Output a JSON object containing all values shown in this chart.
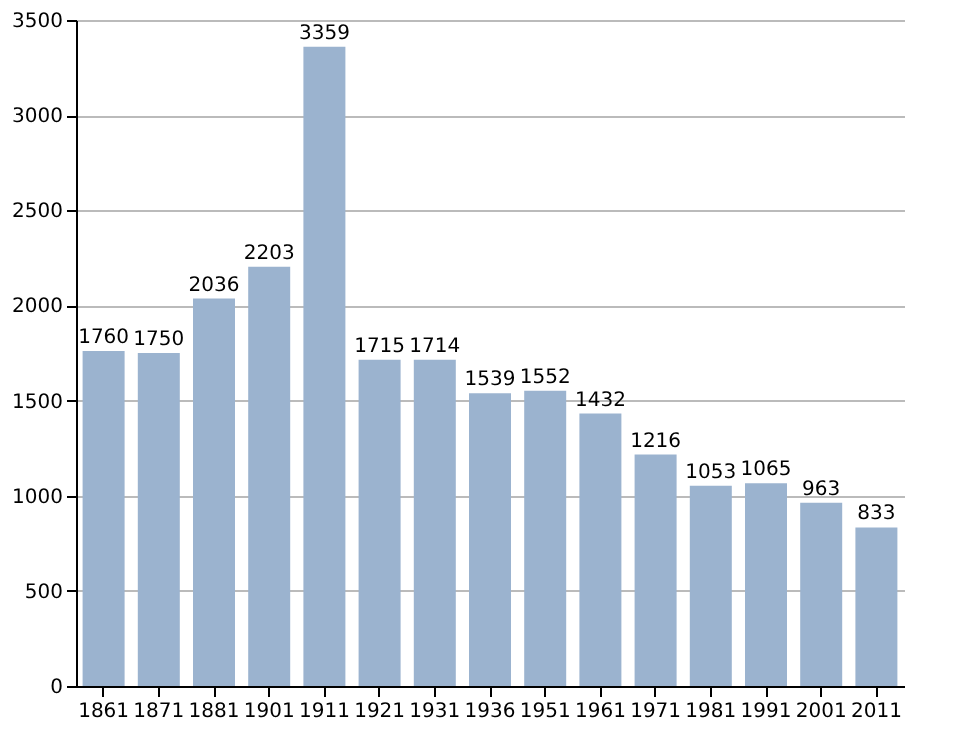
{
  "chart_data": {
    "type": "bar",
    "categories": [
      "1861",
      "1871",
      "1881",
      "1901",
      "1911",
      "1921",
      "1931",
      "1936",
      "1951",
      "1961",
      "1971",
      "1981",
      "1991",
      "2001",
      "2011"
    ],
    "values": [
      1760,
      1750,
      2036,
      2203,
      3359,
      1715,
      1714,
      1539,
      1552,
      1432,
      1216,
      1053,
      1065,
      963,
      833
    ],
    "color": "#9bb3cf",
    "ylim": [
      0,
      3500
    ],
    "yticks": [
      0,
      500,
      1000,
      1500,
      2000,
      2500,
      3000,
      3500
    ],
    "grid": "y",
    "data_labels": true
  }
}
